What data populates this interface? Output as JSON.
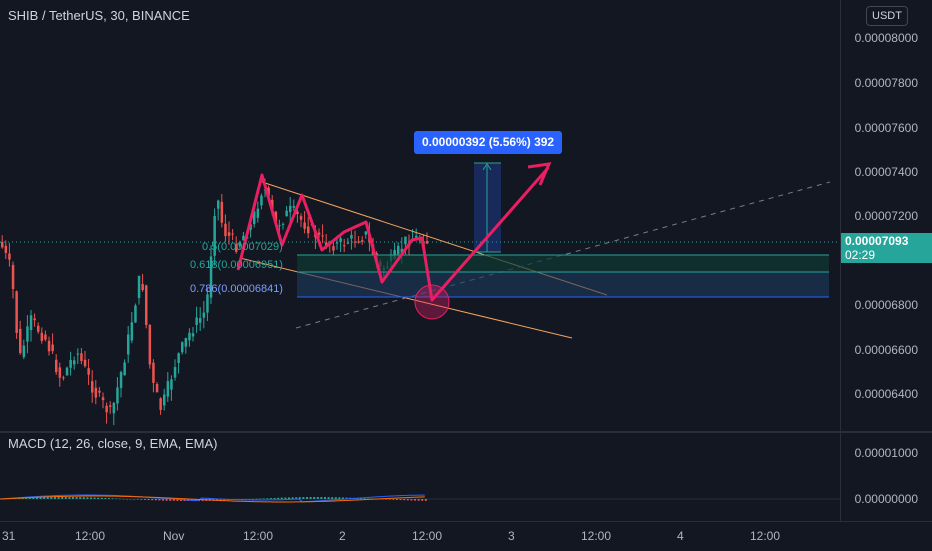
{
  "header": {
    "symbol_title": "SHIB / TetherUS, 30, BINANCE",
    "currency_button": "USDT"
  },
  "macd": {
    "title": "MACD (12, 26, close, 9, EMA, EMA)",
    "scale": [
      "0.00001000",
      "0.00000000"
    ]
  },
  "price_scale": [
    "0.00008000",
    "0.00007800",
    "0.00007600",
    "0.00007400",
    "0.00007200",
    "0.00006800",
    "0.00006600",
    "0.00006400"
  ],
  "current_price": {
    "value": "0.00007093",
    "countdown": "02:29"
  },
  "time_scale": [
    "31",
    "12:00",
    "Nov",
    "12:00",
    "2",
    "12:00",
    "3",
    "12:00",
    "4",
    "12:00"
  ],
  "measure_tool": {
    "label": "0.00000392 (5.56%) 392"
  },
  "fib_levels": [
    {
      "ratio": "0.5",
      "price": "0.00007029",
      "text": "0.5(0.00007029)"
    },
    {
      "ratio": "0.618",
      "price": "0.00006951",
      "text": "0.618(0.00006951)"
    },
    {
      "ratio": "0.786",
      "price": "0.00006841",
      "text": "0.786(0.00006841)"
    }
  ],
  "colors": {
    "background": "#131722",
    "up": "#26a69a",
    "down": "#ef5350",
    "accent": "#2962ff",
    "arrow": "#e91e63"
  }
}
